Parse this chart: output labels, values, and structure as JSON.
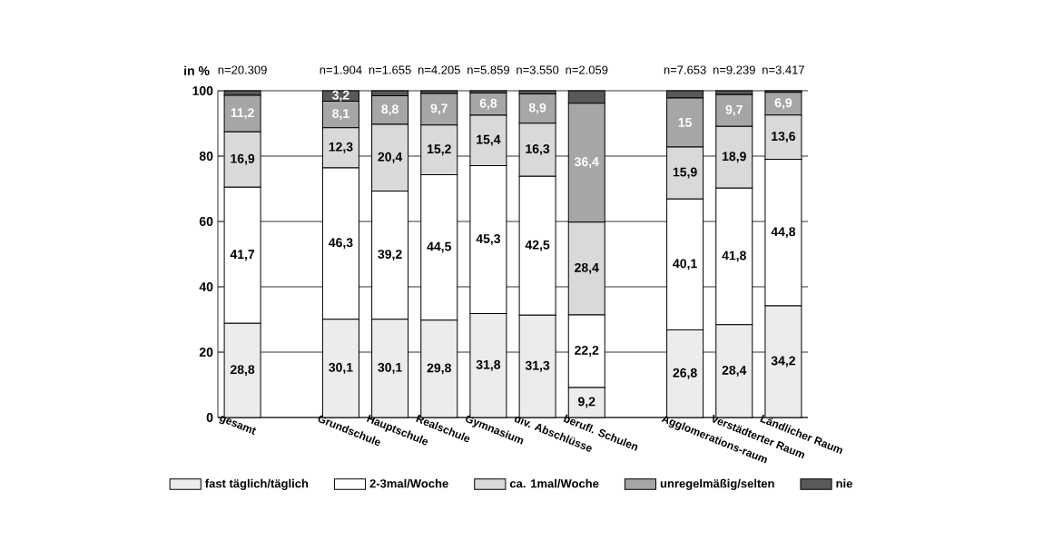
{
  "chart_data": {
    "type": "bar",
    "stacked": true,
    "ylabel": "in %",
    "categories": [
      "gesamt",
      null,
      "Grundschule",
      "Hauptschule",
      "Realschule",
      "Gymnasium",
      "div. Abschlüsse",
      "berufl. Schulen",
      null,
      "Agglomerations-raum",
      "Verstädterter Raum",
      "Ländlicher Raum"
    ],
    "series": [
      {
        "name": "fast täglich/täglich",
        "color": "#ececec",
        "values": [
          28.8,
          null,
          30.1,
          30.1,
          29.8,
          31.8,
          31.3,
          9.2,
          null,
          26.8,
          28.4,
          34.2
        ],
        "value_labels": [
          "28,8",
          null,
          "30,1",
          "30,1",
          "29,8",
          "31,8",
          "31,3",
          "9,2",
          null,
          "26,8",
          "28,4",
          "34,2"
        ]
      },
      {
        "name": "2-3mal/Woche",
        "color": "#ffffff",
        "values": [
          41.7,
          null,
          46.3,
          39.2,
          44.5,
          45.3,
          42.5,
          22.2,
          null,
          40.1,
          41.8,
          44.8
        ],
        "value_labels": [
          "41,7",
          null,
          "46,3",
          "39,2",
          "44,5",
          "45,3",
          "42,5",
          "22,2",
          null,
          "40,1",
          "41,8",
          "44,8"
        ]
      },
      {
        "name": "ca. 1mal/Woche",
        "color": "#d9d9d9",
        "values": [
          16.9,
          null,
          12.3,
          20.4,
          15.2,
          15.4,
          16.3,
          28.4,
          null,
          15.9,
          18.9,
          13.6
        ],
        "value_labels": [
          "16,9",
          null,
          "12,3",
          "20,4",
          "15,2",
          "15,4",
          "16,3",
          "28,4",
          null,
          "15,9",
          "18,9",
          "13,6"
        ]
      },
      {
        "name": "unregelmäßig/selten",
        "color": "#a6a6a6",
        "values": [
          11.2,
          null,
          8.1,
          8.8,
          9.7,
          6.8,
          8.9,
          36.4,
          null,
          15,
          9.7,
          6.9
        ],
        "value_labels": [
          "11,2",
          null,
          "8,1",
          "8,8",
          "9,7",
          "6,8",
          "8,9",
          "36,4",
          null,
          "15",
          "9,7",
          "6,9"
        ]
      },
      {
        "name": "nie",
        "color": "#595959",
        "values": [
          1.4,
          null,
          3.2,
          1.5,
          0.8,
          0.7,
          1.0,
          3.8,
          null,
          2.2,
          1.2,
          0.5
        ],
        "value_labels": [
          null,
          null,
          "3,2",
          null,
          null,
          null,
          null,
          null,
          null,
          null,
          null,
          null
        ]
      }
    ],
    "annotations": [
      "n=20.309",
      "n=1.904",
      "n=1.655",
      "n=4.205",
      "n=5.859",
      "n=3.550",
      "n=2.059",
      "n=7.653",
      "n=9.239",
      "n=3.417"
    ],
    "ylim": [
      0,
      100
    ],
    "yticks": [
      0,
      20,
      40,
      60,
      80,
      100
    ],
    "grid": "y",
    "legend": "bottom"
  }
}
